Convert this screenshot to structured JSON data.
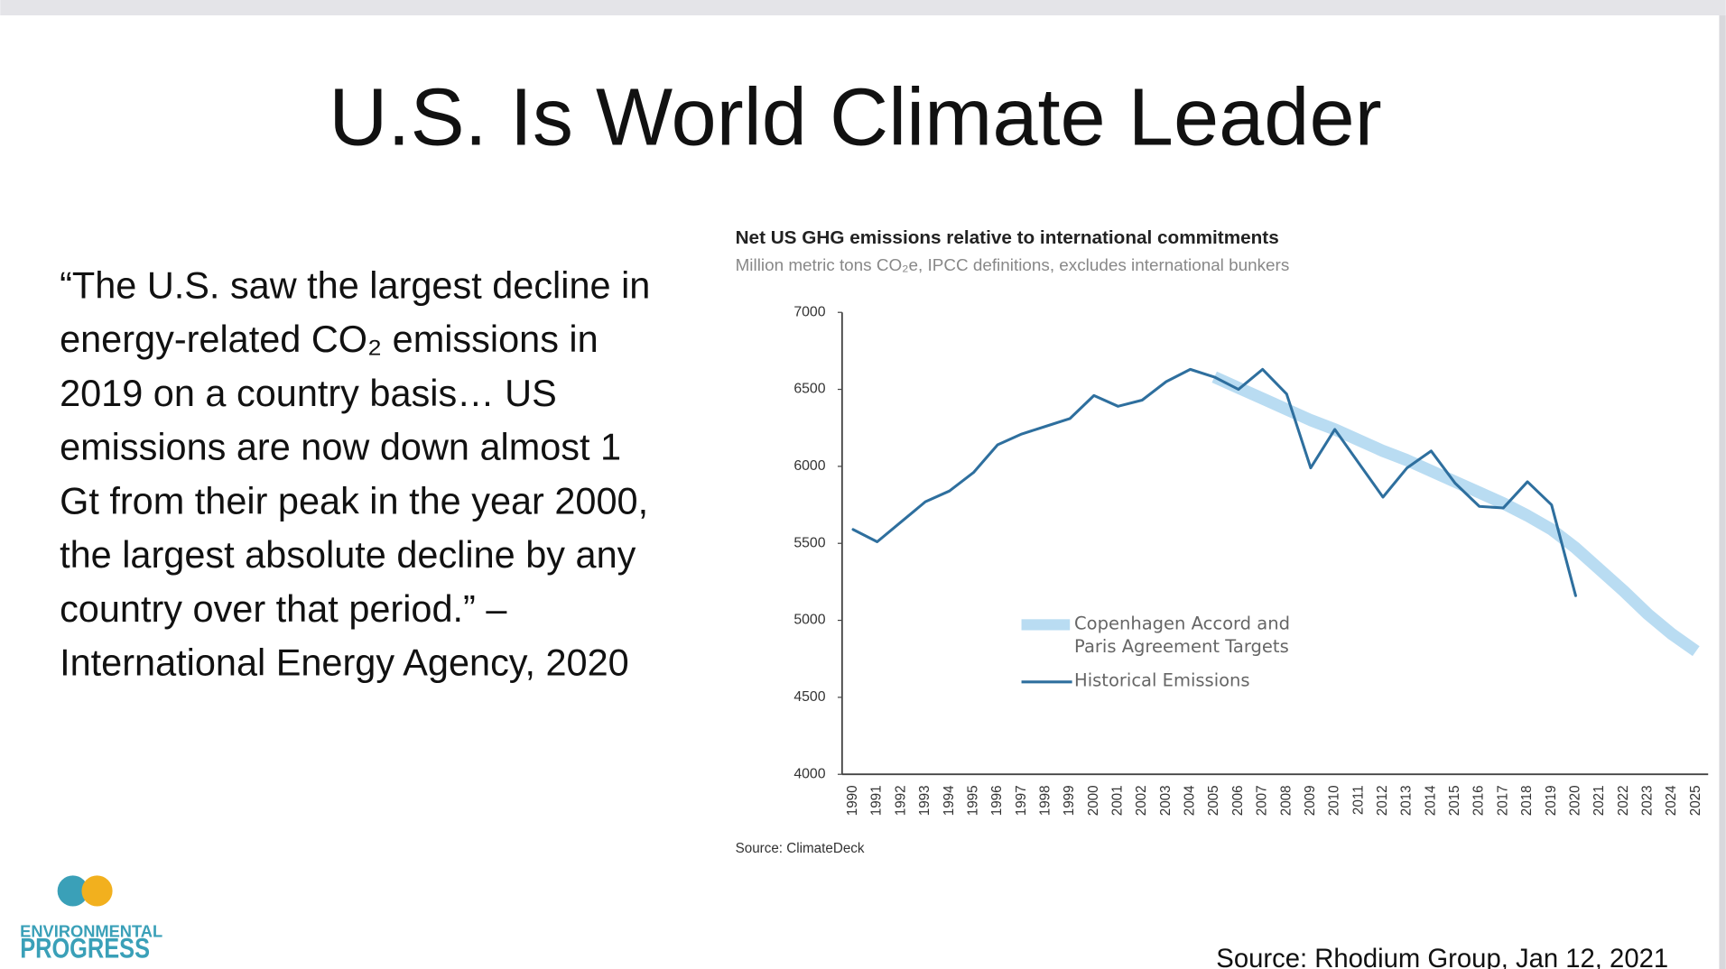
{
  "title": "U.S. Is World Climate Leader",
  "quote": "“The U.S. saw the largest decline in energy-related CO₂ emissions in 2019 on a country basis… US emissions are now down almost 1 Gt from their peak in the year 2000, the largest absolute decline by any country over that period.” – International Energy Agency, 2020",
  "logo": {
    "line1": "ENVIRONMENTAL",
    "line2": "PROGRESS"
  },
  "source": "Source: Rhodium Group, Jan 12, 2021",
  "chart_data": {
    "type": "line",
    "title": "Net US GHG emissions relative to international commitments",
    "subtitle": "Million metric tons CO₂e, IPCC definitions, excludes international bunkers",
    "source": "Source: ClimateDeck",
    "categories": [
      "1990",
      "1991",
      "1992",
      "1993",
      "1994",
      "1995",
      "1996",
      "1997",
      "1998",
      "1999",
      "2000",
      "2001",
      "2002",
      "2003",
      "2004",
      "2005",
      "2006",
      "2007",
      "2008",
      "2009",
      "2010",
      "2011",
      "2012",
      "2013",
      "2014",
      "2015",
      "2016",
      "2017",
      "2018",
      "2019",
      "2020",
      "2021",
      "2022",
      "2023",
      "2024",
      "2025"
    ],
    "series": [
      {
        "name": "Copenhagen Accord and Paris Agreement Targets",
        "color": "#b9dcf2",
        "style": "band",
        "values": [
          null,
          null,
          null,
          null,
          null,
          null,
          null,
          null,
          null,
          null,
          null,
          null,
          null,
          null,
          null,
          6580,
          6510,
          6440,
          6370,
          6300,
          6240,
          6170,
          6100,
          6040,
          5970,
          5900,
          5830,
          5760,
          5680,
          5590,
          5470,
          5330,
          5190,
          5040,
          4910,
          4800
        ]
      },
      {
        "name": "Historical Emissions",
        "color": "#2e6f9e",
        "style": "line",
        "values": [
          5590,
          5510,
          5640,
          5770,
          5840,
          5960,
          6140,
          6210,
          6260,
          6310,
          6460,
          6390,
          6430,
          6550,
          6630,
          6580,
          6500,
          6630,
          6470,
          5990,
          6240,
          6020,
          5800,
          5990,
          6100,
          5890,
          5740,
          5730,
          5900,
          5750,
          5160,
          null,
          null,
          null,
          null,
          null
        ]
      }
    ],
    "ylim": [
      4000,
      7000
    ],
    "yticks": [
      4000,
      4500,
      5000,
      5500,
      6000,
      6500,
      7000
    ],
    "grid": false
  }
}
